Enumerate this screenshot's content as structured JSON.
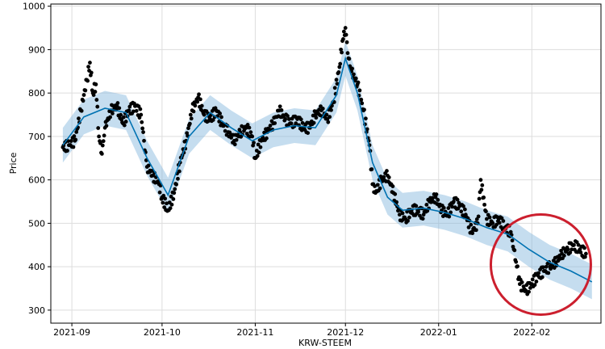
{
  "chart_data": {
    "type": "scatter",
    "xlabel": "KRW-STEEM",
    "ylabel": "Price",
    "xlim": [
      "2021-08-25",
      "2022-02-24"
    ],
    "ylim": [
      270,
      1005
    ],
    "grid": true,
    "x_ticks": [
      "2021-09",
      "2021-10",
      "2021-11",
      "2021-12",
      "2022-01",
      "2022-02"
    ],
    "x_tick_dates": [
      "2021-09-01",
      "2021-10-01",
      "2021-11-01",
      "2021-12-01",
      "2022-01-01",
      "2022-02-01"
    ],
    "y_ticks": [
      300,
      400,
      500,
      600,
      700,
      800,
      900,
      1000
    ],
    "colors": {
      "actual": "#000000",
      "forecast": "#0072B2",
      "interval": "#7FB3DB",
      "highlight": "#cc1f2e"
    },
    "series": [
      {
        "kind": "actual",
        "points": [
          [
            "2021-08-29",
            675
          ],
          [
            "2021-08-31",
            680
          ],
          [
            "2021-09-02",
            690
          ],
          [
            "2021-09-04",
            760
          ],
          [
            "2021-09-06",
            830
          ],
          [
            "2021-09-07",
            870
          ],
          [
            "2021-09-08",
            800
          ],
          [
            "2021-09-09",
            820
          ],
          [
            "2021-09-10",
            700
          ],
          [
            "2021-09-11",
            660
          ],
          [
            "2021-09-12",
            720
          ],
          [
            "2021-09-14",
            760
          ],
          [
            "2021-09-16",
            770
          ],
          [
            "2021-09-18",
            730
          ],
          [
            "2021-09-20",
            760
          ],
          [
            "2021-09-22",
            770
          ],
          [
            "2021-09-24",
            750
          ],
          [
            "2021-09-25",
            690
          ],
          [
            "2021-09-26",
            630
          ],
          [
            "2021-09-28",
            610
          ],
          [
            "2021-09-30",
            590
          ],
          [
            "2021-10-01",
            560
          ],
          [
            "2021-10-03",
            530
          ],
          [
            "2021-10-05",
            570
          ],
          [
            "2021-10-07",
            640
          ],
          [
            "2021-10-09",
            690
          ],
          [
            "2021-10-11",
            760
          ],
          [
            "2021-10-13",
            790
          ],
          [
            "2021-10-15",
            750
          ],
          [
            "2021-10-17",
            740
          ],
          [
            "2021-10-19",
            760
          ],
          [
            "2021-10-21",
            730
          ],
          [
            "2021-10-23",
            710
          ],
          [
            "2021-10-25",
            690
          ],
          [
            "2021-10-27",
            710
          ],
          [
            "2021-10-29",
            720
          ],
          [
            "2021-10-31",
            700
          ],
          [
            "2021-11-01",
            650
          ],
          [
            "2021-11-03",
            690
          ],
          [
            "2021-11-05",
            710
          ],
          [
            "2021-11-07",
            730
          ],
          [
            "2021-11-09",
            760
          ],
          [
            "2021-11-11",
            740
          ],
          [
            "2021-11-13",
            730
          ],
          [
            "2021-11-15",
            740
          ],
          [
            "2021-11-17",
            720
          ],
          [
            "2021-11-19",
            720
          ],
          [
            "2021-11-21",
            750
          ],
          [
            "2021-11-23",
            760
          ],
          [
            "2021-11-25",
            740
          ],
          [
            "2021-11-27",
            780
          ],
          [
            "2021-11-29",
            860
          ],
          [
            "2021-11-30",
            920
          ],
          [
            "2021-12-01",
            950
          ],
          [
            "2021-12-02",
            880
          ],
          [
            "2021-12-03",
            850
          ],
          [
            "2021-12-05",
            820
          ],
          [
            "2021-12-07",
            760
          ],
          [
            "2021-12-09",
            680
          ],
          [
            "2021-12-10",
            590
          ],
          [
            "2021-12-11",
            570
          ],
          [
            "2021-12-13",
            600
          ],
          [
            "2021-12-15",
            610
          ],
          [
            "2021-12-17",
            570
          ],
          [
            "2021-12-19",
            520
          ],
          [
            "2021-12-21",
            510
          ],
          [
            "2021-12-23",
            530
          ],
          [
            "2021-12-25",
            530
          ],
          [
            "2021-12-27",
            520
          ],
          [
            "2021-12-29",
            550
          ],
          [
            "2021-12-31",
            560
          ],
          [
            "2022-01-02",
            530
          ],
          [
            "2022-01-04",
            520
          ],
          [
            "2022-01-06",
            550
          ],
          [
            "2022-01-08",
            540
          ],
          [
            "2022-01-10",
            520
          ],
          [
            "2022-01-12",
            480
          ],
          [
            "2022-01-14",
            500
          ],
          [
            "2022-01-15",
            600
          ],
          [
            "2022-01-17",
            510
          ],
          [
            "2022-01-19",
            500
          ],
          [
            "2022-01-21",
            510
          ],
          [
            "2022-01-23",
            490
          ],
          [
            "2022-01-25",
            480
          ],
          [
            "2022-01-26",
            440
          ],
          [
            "2022-01-27",
            400
          ],
          [
            "2022-01-28",
            360
          ],
          [
            "2022-01-30",
            345
          ],
          [
            "2022-02-01",
            360
          ],
          [
            "2022-02-03",
            380
          ],
          [
            "2022-02-05",
            390
          ],
          [
            "2022-02-07",
            400
          ],
          [
            "2022-02-09",
            410
          ],
          [
            "2022-02-11",
            430
          ],
          [
            "2022-02-13",
            440
          ],
          [
            "2022-02-15",
            450
          ],
          [
            "2022-02-17",
            440
          ],
          [
            "2022-02-19",
            430
          ]
        ]
      },
      {
        "kind": "forecast",
        "points": [
          [
            "2021-08-29",
            680
          ],
          [
            "2021-09-05",
            745
          ],
          [
            "2021-09-12",
            765
          ],
          [
            "2021-09-19",
            755
          ],
          [
            "2021-09-26",
            650
          ],
          [
            "2021-10-03",
            565
          ],
          [
            "2021-10-10",
            700
          ],
          [
            "2021-10-17",
            755
          ],
          [
            "2021-10-24",
            720
          ],
          [
            "2021-10-31",
            690
          ],
          [
            "2021-11-07",
            715
          ],
          [
            "2021-11-14",
            725
          ],
          [
            "2021-11-21",
            720
          ],
          [
            "2021-11-28",
            795
          ],
          [
            "2021-12-01",
            880
          ],
          [
            "2021-12-05",
            800
          ],
          [
            "2021-12-10",
            640
          ],
          [
            "2021-12-15",
            560
          ],
          [
            "2021-12-20",
            530
          ],
          [
            "2021-12-27",
            535
          ],
          [
            "2022-01-03",
            525
          ],
          [
            "2022-01-10",
            510
          ],
          [
            "2022-01-17",
            490
          ],
          [
            "2022-01-24",
            475
          ],
          [
            "2022-01-31",
            440
          ],
          [
            "2022-02-07",
            410
          ],
          [
            "2022-02-14",
            390
          ],
          [
            "2022-02-21",
            365
          ]
        ],
        "interval_half_width": 40
      }
    ],
    "annotation": {
      "type": "circle",
      "center": [
        "2022-02-04",
        405
      ]
    }
  }
}
